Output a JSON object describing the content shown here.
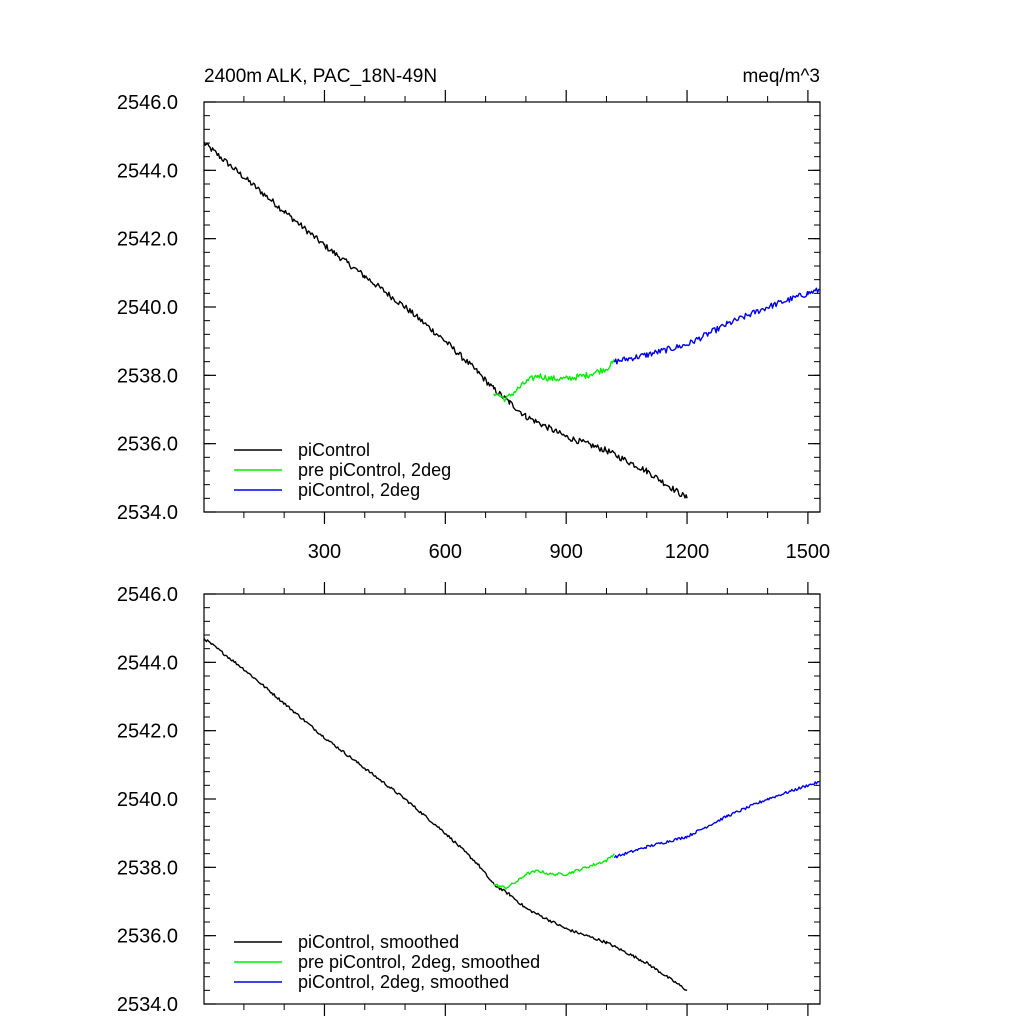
{
  "chart_data": [
    {
      "type": "line",
      "title": "2400m ALK, PAC_18N-49N",
      "units": "meq/m^3",
      "xlim": [
        1,
        1530
      ],
      "ylim": [
        2534.0,
        2546.0
      ],
      "x_ticks": [
        300,
        600,
        900,
        1200,
        1500
      ],
      "x_tick_labels": [
        "300",
        "600",
        "900",
        "1200",
        "1500"
      ],
      "y_ticks": [
        2534.0,
        2536.0,
        2538.0,
        2540.0,
        2542.0,
        2544.0,
        2546.0
      ],
      "y_tick_labels": [
        "2534.0",
        "2536.0",
        "2538.0",
        "2540.0",
        "2542.0",
        "2544.0",
        "2546.0"
      ],
      "legend": [
        "piControl",
        "pre piControl, 2deg",
        "piControl, 2deg"
      ],
      "legend_position": "bottom-left",
      "series": [
        {
          "name": "piControl",
          "color": "#000000",
          "x": [
            1,
            100,
            200,
            300,
            400,
            500,
            600,
            680,
            720,
            760,
            800,
            900,
            1000,
            1100,
            1150,
            1200
          ],
          "y": [
            2544.8,
            2543.8,
            2542.8,
            2541.8,
            2540.9,
            2540.0,
            2539.0,
            2538.1,
            2537.6,
            2537.2,
            2536.8,
            2536.2,
            2535.8,
            2535.2,
            2534.8,
            2534.4
          ]
        },
        {
          "name": "pre piControl, 2deg",
          "color": "#00ee00",
          "x": [
            720,
            750,
            780,
            800,
            830,
            860,
            900,
            950,
            1000,
            1020
          ],
          "y": [
            2537.5,
            2537.3,
            2537.6,
            2537.8,
            2538.0,
            2537.9,
            2537.9,
            2538.0,
            2538.2,
            2538.4
          ]
        },
        {
          "name": "piControl, 2deg",
          "color": "#0000ee",
          "x": [
            1020,
            1100,
            1200,
            1300,
            1400,
            1500,
            1530
          ],
          "y": [
            2538.4,
            2538.6,
            2538.9,
            2539.5,
            2540.0,
            2540.4,
            2540.5
          ]
        }
      ]
    },
    {
      "type": "line",
      "title": "",
      "xlim": [
        1,
        1530
      ],
      "ylim": [
        2534.0,
        2546.0
      ],
      "x_ticks": [
        300,
        600,
        900,
        1200,
        1500
      ],
      "x_tick_labels": [],
      "y_ticks": [
        2534.0,
        2536.0,
        2538.0,
        2540.0,
        2542.0,
        2544.0,
        2546.0
      ],
      "y_tick_labels": [
        "2534.0",
        "2536.0",
        "2538.0",
        "2540.0",
        "2542.0",
        "2544.0",
        "2546.0"
      ],
      "legend": [
        "piControl, smoothed",
        "pre piControl, 2deg, smoothed",
        "piControl, 2deg, smoothed"
      ],
      "legend_position": "bottom-left",
      "series": [
        {
          "name": "piControl, smoothed",
          "color": "#000000",
          "x": [
            1,
            100,
            200,
            300,
            400,
            500,
            600,
            680,
            720,
            760,
            800,
            900,
            1000,
            1100,
            1150,
            1200
          ],
          "y": [
            2544.7,
            2543.8,
            2542.8,
            2541.8,
            2540.9,
            2540.0,
            2539.0,
            2538.1,
            2537.5,
            2537.2,
            2536.8,
            2536.2,
            2535.8,
            2535.2,
            2534.8,
            2534.4
          ]
        },
        {
          "name": "pre piControl, 2deg, smoothed",
          "color": "#00ee00",
          "x": [
            720,
            750,
            780,
            800,
            830,
            860,
            900,
            950,
            1000,
            1020
          ],
          "y": [
            2537.5,
            2537.4,
            2537.6,
            2537.8,
            2537.9,
            2537.8,
            2537.8,
            2538.0,
            2538.2,
            2538.4
          ]
        },
        {
          "name": "piControl, 2deg, smoothed",
          "color": "#0000ee",
          "x": [
            1020,
            1100,
            1200,
            1300,
            1400,
            1500,
            1530
          ],
          "y": [
            2538.3,
            2538.6,
            2538.9,
            2539.5,
            2540.0,
            2540.4,
            2540.5
          ]
        }
      ]
    }
  ]
}
